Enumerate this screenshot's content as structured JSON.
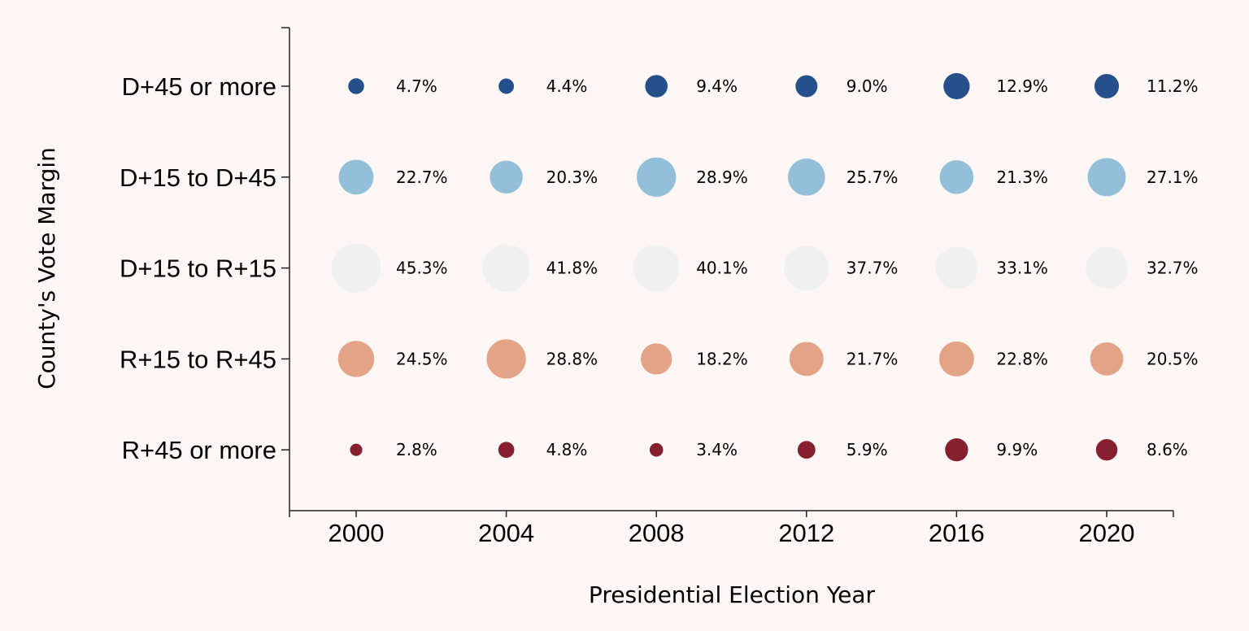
{
  "chart_data": {
    "type": "scatter",
    "title": "",
    "xlabel": "Presidential Election Year",
    "ylabel": "County's Vote Margin",
    "x": [
      2000,
      2004,
      2008,
      2012,
      2016,
      2020
    ],
    "categories": [
      "D+45 or more",
      "D+15 to D+45",
      "D+15 to R+15",
      "R+15 to R+45",
      "R+45 or more"
    ],
    "size_encoding": "area proportional to percent of counties",
    "grid": false,
    "legend": "none",
    "series": [
      {
        "category": "D+45 or more",
        "color": "#26508c",
        "values": [
          4.7,
          4.4,
          9.4,
          9.0,
          12.9,
          11.2
        ],
        "labels": [
          "4.7%",
          "4.4%",
          "9.4%",
          "9.0%",
          "12.9%",
          "11.2%"
        ]
      },
      {
        "category": "D+15 to D+45",
        "color": "#94bfd9",
        "values": [
          22.7,
          20.3,
          28.9,
          25.7,
          21.3,
          27.1
        ],
        "labels": [
          "22.7%",
          "20.3%",
          "28.9%",
          "25.7%",
          "21.3%",
          "27.1%"
        ]
      },
      {
        "category": "D+15 to R+15",
        "color": "#f0f0f0",
        "values": [
          45.3,
          41.8,
          40.1,
          37.7,
          33.1,
          32.7
        ],
        "labels": [
          "45.3%",
          "41.8%",
          "40.1%",
          "37.7%",
          "33.1%",
          "32.7%"
        ]
      },
      {
        "category": "R+15 to R+45",
        "color": "#e3a386",
        "values": [
          24.5,
          28.8,
          18.2,
          21.7,
          22.8,
          20.5
        ],
        "labels": [
          "24.5%",
          "28.8%",
          "18.2%",
          "21.7%",
          "22.8%",
          "20.5%"
        ]
      },
      {
        "category": "R+45 or more",
        "color": "#86202e",
        "values": [
          2.8,
          4.8,
          3.4,
          5.9,
          9.9,
          8.6
        ],
        "labels": [
          "2.8%",
          "4.8%",
          "3.4%",
          "5.9%",
          "9.9%",
          "8.6%"
        ]
      }
    ]
  }
}
